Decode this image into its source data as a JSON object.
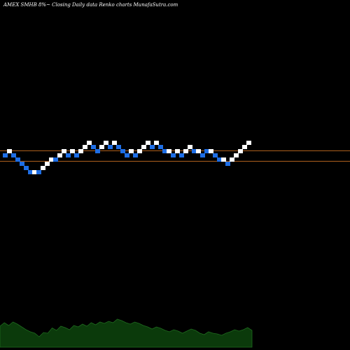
{
  "title": "AMEX  SMHB 8%~  Closing Daily data  Renko  charts MunafaSutra.com",
  "chart_data": {
    "type": "renko",
    "title": "AMEX  SMHB 8%~  Closing Daily data  Renko  charts MunafaSutra.com",
    "colors": {
      "up": "#ffffff",
      "down": "#1e6ee6",
      "level_line": "#b4641e",
      "volume_fill": "#0b3a0b",
      "volume_line": "#1f6b1f"
    },
    "bricks": [
      {
        "dir": "down",
        "level": 0
      },
      {
        "dir": "up",
        "level": 1
      },
      {
        "dir": "down",
        "level": 0
      },
      {
        "dir": "down",
        "level": -1
      },
      {
        "dir": "down",
        "level": -2
      },
      {
        "dir": "down",
        "level": -3
      },
      {
        "dir": "down",
        "level": -4
      },
      {
        "dir": "up",
        "level": -4
      },
      {
        "dir": "down",
        "level": -4
      },
      {
        "dir": "up",
        "level": -3
      },
      {
        "dir": "up",
        "level": -2
      },
      {
        "dir": "up",
        "level": -1
      },
      {
        "dir": "down",
        "level": -1
      },
      {
        "dir": "up",
        "level": 0
      },
      {
        "dir": "up",
        "level": 1
      },
      {
        "dir": "down",
        "level": 0
      },
      {
        "dir": "up",
        "level": 1
      },
      {
        "dir": "down",
        "level": 0
      },
      {
        "dir": "up",
        "level": 1
      },
      {
        "dir": "up",
        "level": 2
      },
      {
        "dir": "up",
        "level": 3
      },
      {
        "dir": "down",
        "level": 2
      },
      {
        "dir": "down",
        "level": 1
      },
      {
        "dir": "up",
        "level": 2
      },
      {
        "dir": "up",
        "level": 3
      },
      {
        "dir": "down",
        "level": 2
      },
      {
        "dir": "up",
        "level": 3
      },
      {
        "dir": "down",
        "level": 2
      },
      {
        "dir": "down",
        "level": 1
      },
      {
        "dir": "down",
        "level": 0
      },
      {
        "dir": "up",
        "level": 1
      },
      {
        "dir": "down",
        "level": 0
      },
      {
        "dir": "up",
        "level": 1
      },
      {
        "dir": "up",
        "level": 2
      },
      {
        "dir": "up",
        "level": 3
      },
      {
        "dir": "down",
        "level": 2
      },
      {
        "dir": "up",
        "level": 3
      },
      {
        "dir": "down",
        "level": 2
      },
      {
        "dir": "down",
        "level": 1
      },
      {
        "dir": "up",
        "level": 1
      },
      {
        "dir": "down",
        "level": 0
      },
      {
        "dir": "up",
        "level": 1
      },
      {
        "dir": "down",
        "level": 0
      },
      {
        "dir": "up",
        "level": 1
      },
      {
        "dir": "up",
        "level": 2
      },
      {
        "dir": "down",
        "level": 1
      },
      {
        "dir": "up",
        "level": 1
      },
      {
        "dir": "down",
        "level": 0
      },
      {
        "dir": "down",
        "level": 1
      },
      {
        "dir": "up",
        "level": 1
      },
      {
        "dir": "down",
        "level": 0
      },
      {
        "dir": "down",
        "level": -1
      },
      {
        "dir": "up",
        "level": -1
      },
      {
        "dir": "down",
        "level": -2
      },
      {
        "dir": "up",
        "level": -1
      },
      {
        "dir": "up",
        "level": 0
      },
      {
        "dir": "up",
        "level": 1
      },
      {
        "dir": "up",
        "level": 2
      },
      {
        "dir": "up",
        "level": 3
      }
    ],
    "level_lines": [
      1.1,
      -1.4
    ],
    "volume": [
      0.6,
      0.7,
      0.62,
      0.72,
      0.66,
      0.58,
      0.5,
      0.44,
      0.4,
      0.3,
      0.42,
      0.4,
      0.55,
      0.48,
      0.6,
      0.56,
      0.5,
      0.62,
      0.58,
      0.66,
      0.6,
      0.7,
      0.64,
      0.72,
      0.68,
      0.74,
      0.7,
      0.8,
      0.76,
      0.7,
      0.66,
      0.72,
      0.68,
      0.62,
      0.58,
      0.52,
      0.58,
      0.54,
      0.48,
      0.44,
      0.5,
      0.46,
      0.4,
      0.46,
      0.52,
      0.48,
      0.4,
      0.36,
      0.44,
      0.4,
      0.38,
      0.34,
      0.4,
      0.44,
      0.5,
      0.46,
      0.5,
      0.56,
      0.48
    ]
  }
}
